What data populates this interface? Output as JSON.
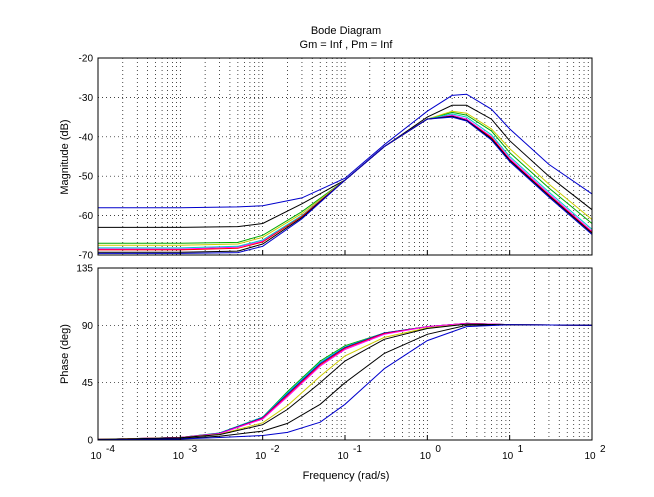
{
  "chart_data": [
    {
      "type": "line",
      "panel": "magnitude",
      "title": "Bode Diagram",
      "subtitle": "Gm = Inf ,  Pm = Inf",
      "ylabel": "Magnitude (dB)",
      "xlabel": "",
      "xscale": "log",
      "xlim": [
        0.0001,
        100
      ],
      "ylim": [
        -70,
        -20
      ],
      "yticks": [
        "-70",
        "-60",
        "-50",
        "-40",
        "-30",
        "-20"
      ],
      "grid": true,
      "series": [
        {
          "color": "#0000cc",
          "points": [
            [
              0.0001,
              -58
            ],
            [
              0.001,
              -58
            ],
            [
              0.005,
              -57.8
            ],
            [
              0.01,
              -57.5
            ],
            [
              0.03,
              -55.5
            ],
            [
              0.1,
              -50.5
            ],
            [
              0.3,
              -42
            ],
            [
              1,
              -33.5
            ],
            [
              2,
              -29.5
            ],
            [
              3,
              -29.2
            ],
            [
              6,
              -33
            ],
            [
              10,
              -38
            ],
            [
              30,
              -47
            ],
            [
              100,
              -54.5
            ]
          ]
        },
        {
          "color": "#000000",
          "points": [
            [
              0.0001,
              -63
            ],
            [
              0.001,
              -63
            ],
            [
              0.005,
              -62.8
            ],
            [
              0.01,
              -62
            ],
            [
              0.03,
              -57
            ],
            [
              0.1,
              -51
            ],
            [
              0.3,
              -42.5
            ],
            [
              1,
              -35
            ],
            [
              2,
              -32
            ],
            [
              3,
              -32
            ],
            [
              6,
              -35.5
            ],
            [
              10,
              -41
            ],
            [
              30,
              -50
            ],
            [
              100,
              -58.5
            ]
          ]
        },
        {
          "color": "#00aa00",
          "points": [
            [
              0.0001,
              -67
            ],
            [
              0.001,
              -67
            ],
            [
              0.005,
              -66.8
            ],
            [
              0.01,
              -65
            ],
            [
              0.03,
              -59
            ],
            [
              0.1,
              -51
            ],
            [
              0.3,
              -42.5
            ],
            [
              1,
              -35.5
            ],
            [
              2,
              -33.8
            ],
            [
              3,
              -34.5
            ],
            [
              6,
              -38.5
            ],
            [
              10,
              -44
            ],
            [
              30,
              -53
            ],
            [
              100,
              -62
            ]
          ]
        },
        {
          "color": "#cccc00",
          "points": [
            [
              0.0001,
              -67.5
            ],
            [
              0.001,
              -67.5
            ],
            [
              0.005,
              -67.2
            ],
            [
              0.01,
              -65.5
            ],
            [
              0.03,
              -59.5
            ],
            [
              0.1,
              -51
            ],
            [
              0.3,
              -42.5
            ],
            [
              1,
              -35.5
            ],
            [
              2,
              -33.5
            ],
            [
              3,
              -34
            ],
            [
              6,
              -38
            ],
            [
              10,
              -43
            ],
            [
              30,
              -52
            ],
            [
              100,
              -61
            ]
          ]
        },
        {
          "color": "#ff00ff",
          "points": [
            [
              0.0001,
              -68.5
            ],
            [
              0.001,
              -68.5
            ],
            [
              0.005,
              -68
            ],
            [
              0.01,
              -66.5
            ],
            [
              0.03,
              -60
            ],
            [
              0.1,
              -51
            ],
            [
              0.3,
              -42.5
            ],
            [
              1,
              -35.5
            ],
            [
              2,
              -34.5
            ],
            [
              3,
              -35.5
            ],
            [
              6,
              -40
            ],
            [
              10,
              -45.5
            ],
            [
              30,
              -54.5
            ],
            [
              100,
              -64
            ]
          ]
        },
        {
          "color": "#00cccc",
          "points": [
            [
              0.0001,
              -68.2
            ],
            [
              0.001,
              -68.2
            ],
            [
              0.005,
              -67.8
            ],
            [
              0.01,
              -66.2
            ],
            [
              0.03,
              -60
            ],
            [
              0.1,
              -51
            ],
            [
              0.3,
              -42.5
            ],
            [
              1,
              -35.5
            ],
            [
              2,
              -34.2
            ],
            [
              3,
              -35
            ],
            [
              6,
              -39.5
            ],
            [
              10,
              -45
            ],
            [
              30,
              -54
            ],
            [
              100,
              -63.5
            ]
          ]
        },
        {
          "color": "#ff0000",
          "points": [
            [
              0.0001,
              -68.7
            ],
            [
              0.001,
              -68.7
            ],
            [
              0.005,
              -68.3
            ],
            [
              0.01,
              -66.7
            ],
            [
              0.03,
              -60.2
            ],
            [
              0.1,
              -51
            ],
            [
              0.3,
              -42.5
            ],
            [
              1,
              -35.5
            ],
            [
              2,
              -34.8
            ],
            [
              3,
              -35.8
            ],
            [
              6,
              -40.2
            ],
            [
              10,
              -45.8
            ],
            [
              30,
              -54.8
            ],
            [
              100,
              -64.3
            ]
          ]
        },
        {
          "color": "#000000",
          "points": [
            [
              0.0001,
              -69.3
            ],
            [
              0.001,
              -69.3
            ],
            [
              0.005,
              -69
            ],
            [
              0.01,
              -67.2
            ],
            [
              0.03,
              -60.5
            ],
            [
              0.1,
              -51
            ],
            [
              0.3,
              -42.5
            ],
            [
              1,
              -35.5
            ],
            [
              2,
              -34.8
            ],
            [
              3,
              -35.8
            ],
            [
              6,
              -40.5
            ],
            [
              10,
              -46
            ],
            [
              30,
              -55
            ],
            [
              100,
              -64.5
            ]
          ]
        },
        {
          "color": "#0000cc",
          "points": [
            [
              0.0001,
              -69.6
            ],
            [
              0.001,
              -69.6
            ],
            [
              0.005,
              -69.4
            ],
            [
              0.01,
              -67.8
            ],
            [
              0.03,
              -60.8
            ],
            [
              0.1,
              -51
            ],
            [
              0.3,
              -42.5
            ],
            [
              1,
              -35.5
            ],
            [
              2,
              -35
            ],
            [
              3,
              -36
            ],
            [
              6,
              -40.8
            ],
            [
              10,
              -46.3
            ],
            [
              30,
              -55.3
            ],
            [
              100,
              -64.8
            ]
          ]
        }
      ]
    },
    {
      "type": "line",
      "panel": "phase",
      "title": "",
      "ylabel": "Phase (deg)",
      "xlabel": "Frequency  (rad/s)",
      "xscale": "log",
      "xlim": [
        0.0001,
        100
      ],
      "ylim": [
        0,
        135
      ],
      "yticks": [
        "0",
        "45",
        "90",
        "135"
      ],
      "xticks": [
        "10",
        "10",
        "10",
        "10",
        "10",
        "10",
        "10"
      ],
      "xtick_exponents": [
        "-4",
        "-3",
        "-2",
        "-1",
        "0",
        "1",
        "2"
      ],
      "grid": true,
      "series": [
        {
          "color": "#00aa00",
          "points": [
            [
              0.0001,
              0.5
            ],
            [
              0.001,
              2
            ],
            [
              0.003,
              5.5
            ],
            [
              0.01,
              18
            ],
            [
              0.02,
              38
            ],
            [
              0.05,
              62
            ],
            [
              0.1,
              74
            ],
            [
              0.3,
              84
            ],
            [
              1,
              89
            ],
            [
              3,
              91.5
            ],
            [
              10,
              90.5
            ],
            [
              100,
              90
            ]
          ]
        },
        {
          "color": "#00cccc",
          "points": [
            [
              0.0001,
              0.5
            ],
            [
              0.001,
              2
            ],
            [
              0.003,
              5.5
            ],
            [
              0.01,
              18
            ],
            [
              0.02,
              37
            ],
            [
              0.05,
              61
            ],
            [
              0.1,
              73
            ],
            [
              0.3,
              84
            ],
            [
              1,
              89
            ],
            [
              3,
              91.5
            ],
            [
              10,
              90.5
            ],
            [
              100,
              90
            ]
          ]
        },
        {
          "color": "#0000cc",
          "points": [
            [
              0.0001,
              0.5
            ],
            [
              0.001,
              2
            ],
            [
              0.003,
              5.3
            ],
            [
              0.01,
              17.5
            ],
            [
              0.02,
              36
            ],
            [
              0.05,
              60
            ],
            [
              0.1,
              72.5
            ],
            [
              0.3,
              84
            ],
            [
              1,
              89
            ],
            [
              3,
              91.5
            ],
            [
              10,
              90.5
            ],
            [
              100,
              90
            ]
          ]
        },
        {
          "color": "#ff0000",
          "points": [
            [
              0.0001,
              0.5
            ],
            [
              0.001,
              2
            ],
            [
              0.003,
              5
            ],
            [
              0.01,
              17
            ],
            [
              0.02,
              35
            ],
            [
              0.05,
              59
            ],
            [
              0.1,
              72
            ],
            [
              0.3,
              83.5
            ],
            [
              1,
              89
            ],
            [
              3,
              91.5
            ],
            [
              10,
              90.5
            ],
            [
              100,
              90
            ]
          ]
        },
        {
          "color": "#ff00ff",
          "points": [
            [
              0.0001,
              0.5
            ],
            [
              0.001,
              2
            ],
            [
              0.003,
              5
            ],
            [
              0.01,
              16.5
            ],
            [
              0.02,
              34
            ],
            [
              0.05,
              58
            ],
            [
              0.1,
              71
            ],
            [
              0.3,
              83
            ],
            [
              1,
              89
            ],
            [
              3,
              91.5
            ],
            [
              10,
              90.5
            ],
            [
              100,
              90
            ]
          ]
        },
        {
          "color": "#cccc00",
          "points": [
            [
              0.0001,
              0.5
            ],
            [
              0.001,
              1.8
            ],
            [
              0.003,
              4.5
            ],
            [
              0.01,
              13.5
            ],
            [
              0.02,
              27
            ],
            [
              0.05,
              50
            ],
            [
              0.1,
              66
            ],
            [
              0.3,
              80.5
            ],
            [
              1,
              88
            ],
            [
              3,
              91
            ],
            [
              10,
              90.5
            ],
            [
              100,
              90
            ]
          ]
        },
        {
          "color": "#000000",
          "points": [
            [
              0.0001,
              0.5
            ],
            [
              0.001,
              1.7
            ],
            [
              0.003,
              4.2
            ],
            [
              0.01,
              12
            ],
            [
              0.02,
              24
            ],
            [
              0.05,
              45
            ],
            [
              0.1,
              62
            ],
            [
              0.3,
              79
            ],
            [
              1,
              87.5
            ],
            [
              3,
              91
            ],
            [
              10,
              90.5
            ],
            [
              100,
              90
            ]
          ]
        },
        {
          "color": "#000000",
          "points": [
            [
              0.0001,
              0.3
            ],
            [
              0.001,
              1.2
            ],
            [
              0.003,
              3
            ],
            [
              0.01,
              7
            ],
            [
              0.02,
              13
            ],
            [
              0.05,
              28
            ],
            [
              0.1,
              45
            ],
            [
              0.3,
              68
            ],
            [
              1,
              83
            ],
            [
              3,
              90
            ],
            [
              10,
              90.5
            ],
            [
              100,
              90
            ]
          ]
        },
        {
          "color": "#0000cc",
          "points": [
            [
              0.0001,
              0.2
            ],
            [
              0.001,
              0.8
            ],
            [
              0.003,
              2
            ],
            [
              0.01,
              3.5
            ],
            [
              0.02,
              6
            ],
            [
              0.05,
              14
            ],
            [
              0.1,
              28
            ],
            [
              0.3,
              56
            ],
            [
              1,
              78
            ],
            [
              3,
              89
            ],
            [
              10,
              90.5
            ],
            [
              100,
              90
            ]
          ]
        }
      ]
    }
  ]
}
